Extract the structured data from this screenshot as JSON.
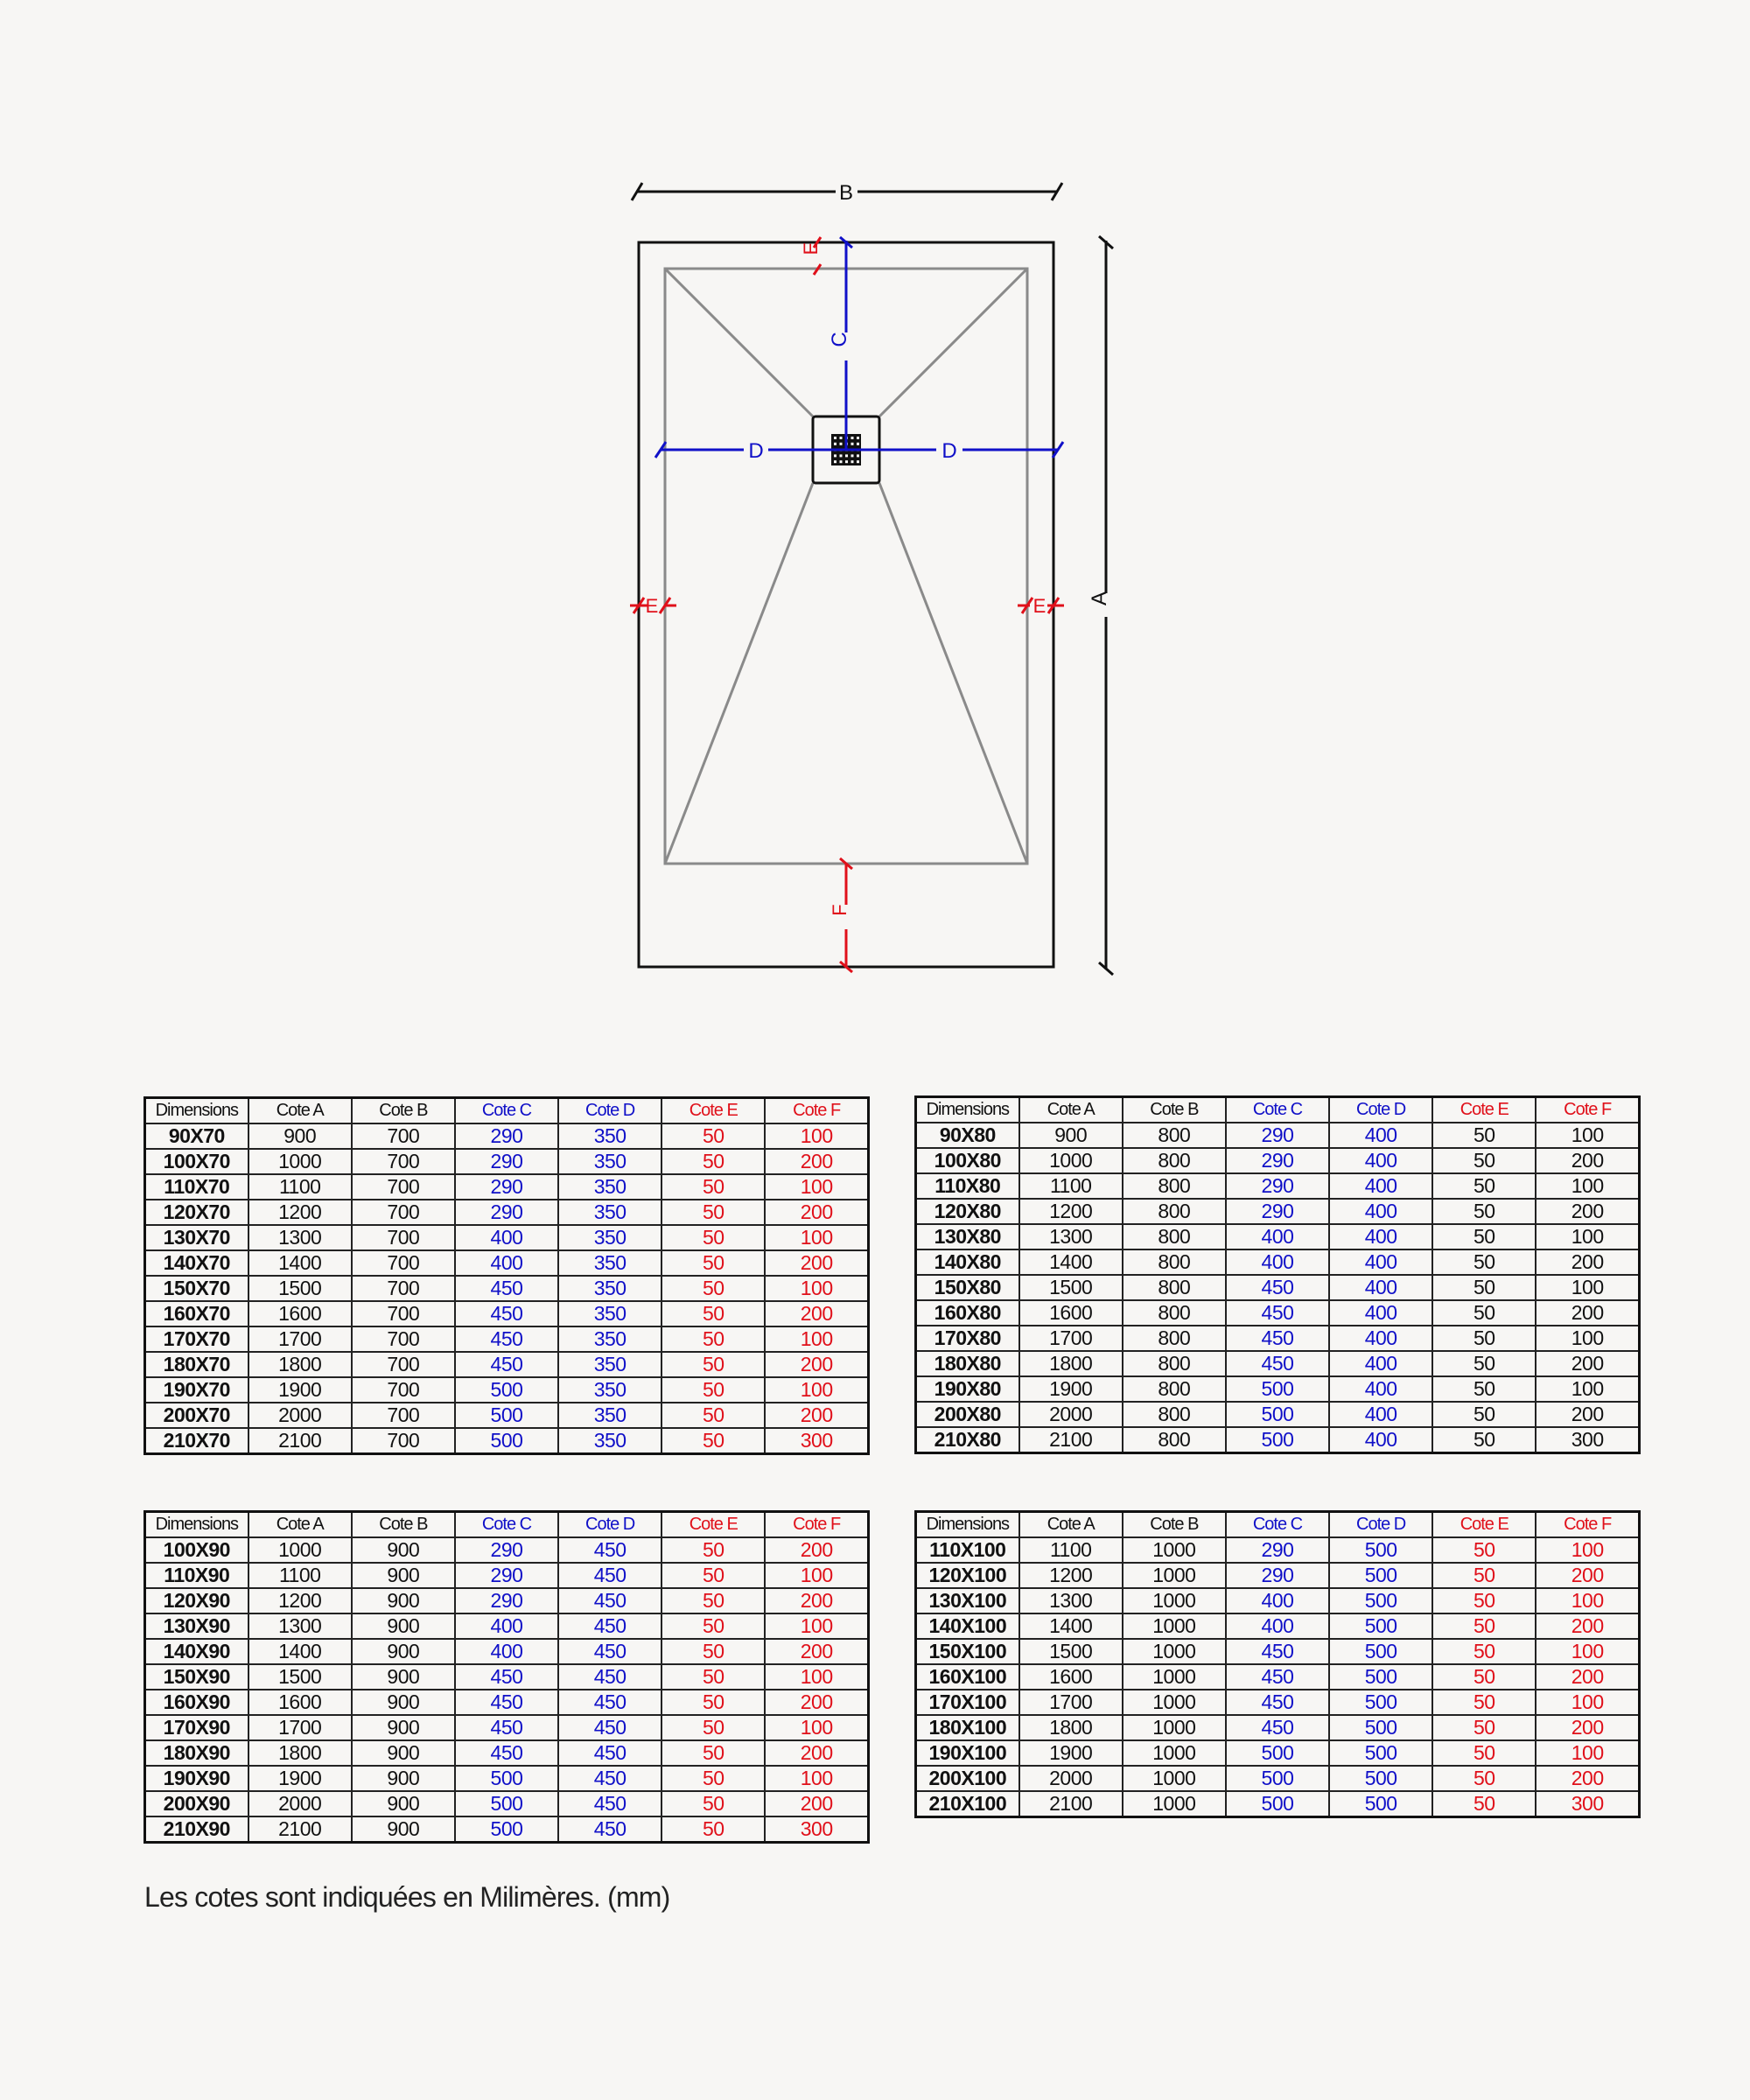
{
  "colors": {
    "black": "#111111",
    "blue": "#1010c8",
    "red": "#e0101a",
    "gray": "#8a8a8a"
  },
  "drawing": {
    "labels": {
      "a": "A",
      "b": "B",
      "c": "C",
      "d": "D",
      "e": "E",
      "f": "F"
    }
  },
  "tables": [
    {
      "headers": [
        "Dimensions",
        "Cote A",
        "Cote B",
        "Cote C",
        "Cote D",
        "Cote E",
        "Cote F"
      ],
      "rows": [
        [
          "90X70",
          "900",
          "700",
          "290",
          "350",
          "50",
          "100"
        ],
        [
          "100X70",
          "1000",
          "700",
          "290",
          "350",
          "50",
          "200"
        ],
        [
          "110X70",
          "1100",
          "700",
          "290",
          "350",
          "50",
          "100"
        ],
        [
          "120X70",
          "1200",
          "700",
          "290",
          "350",
          "50",
          "200"
        ],
        [
          "130X70",
          "1300",
          "700",
          "400",
          "350",
          "50",
          "100"
        ],
        [
          "140X70",
          "1400",
          "700",
          "400",
          "350",
          "50",
          "200"
        ],
        [
          "150X70",
          "1500",
          "700",
          "450",
          "350",
          "50",
          "100"
        ],
        [
          "160X70",
          "1600",
          "700",
          "450",
          "350",
          "50",
          "200"
        ],
        [
          "170X70",
          "1700",
          "700",
          "450",
          "350",
          "50",
          "100"
        ],
        [
          "180X70",
          "1800",
          "700",
          "450",
          "350",
          "50",
          "200"
        ],
        [
          "190X70",
          "1900",
          "700",
          "500",
          "350",
          "50",
          "100"
        ],
        [
          "200X70",
          "2000",
          "700",
          "500",
          "350",
          "50",
          "200"
        ],
        [
          "210X70",
          "2100",
          "700",
          "500",
          "350",
          "50",
          "300"
        ]
      ],
      "col_colors": [
        "black",
        "black",
        "black",
        "blue",
        "blue",
        "red",
        "red"
      ]
    },
    {
      "headers": [
        "Dimensions",
        "Cote A",
        "Cote B",
        "Cote C",
        "Cote D",
        "Cote E",
        "Cote F"
      ],
      "rows": [
        [
          "90X80",
          "900",
          "800",
          "290",
          "400",
          "50",
          "100"
        ],
        [
          "100X80",
          "1000",
          "800",
          "290",
          "400",
          "50",
          "200"
        ],
        [
          "110X80",
          "1100",
          "800",
          "290",
          "400",
          "50",
          "100"
        ],
        [
          "120X80",
          "1200",
          "800",
          "290",
          "400",
          "50",
          "200"
        ],
        [
          "130X80",
          "1300",
          "800",
          "400",
          "400",
          "50",
          "100"
        ],
        [
          "140X80",
          "1400",
          "800",
          "400",
          "400",
          "50",
          "200"
        ],
        [
          "150X80",
          "1500",
          "800",
          "450",
          "400",
          "50",
          "100"
        ],
        [
          "160X80",
          "1600",
          "800",
          "450",
          "400",
          "50",
          "200"
        ],
        [
          "170X80",
          "1700",
          "800",
          "450",
          "400",
          "50",
          "100"
        ],
        [
          "180X80",
          "1800",
          "800",
          "450",
          "400",
          "50",
          "200"
        ],
        [
          "190X80",
          "1900",
          "800",
          "500",
          "400",
          "50",
          "100"
        ],
        [
          "200X80",
          "2000",
          "800",
          "500",
          "400",
          "50",
          "200"
        ],
        [
          "210X80",
          "2100",
          "800",
          "500",
          "400",
          "50",
          "300"
        ]
      ],
      "col_colors": [
        "black",
        "black",
        "black",
        "blue",
        "blue",
        "black",
        "black"
      ]
    },
    {
      "headers": [
        "Dimensions",
        "Cote A",
        "Cote B",
        "Cote C",
        "Cote D",
        "Cote E",
        "Cote F"
      ],
      "rows": [
        [
          "100X90",
          "1000",
          "900",
          "290",
          "450",
          "50",
          "200"
        ],
        [
          "110X90",
          "1100",
          "900",
          "290",
          "450",
          "50",
          "100"
        ],
        [
          "120X90",
          "1200",
          "900",
          "290",
          "450",
          "50",
          "200"
        ],
        [
          "130X90",
          "1300",
          "900",
          "400",
          "450",
          "50",
          "100"
        ],
        [
          "140X90",
          "1400",
          "900",
          "400",
          "450",
          "50",
          "200"
        ],
        [
          "150X90",
          "1500",
          "900",
          "450",
          "450",
          "50",
          "100"
        ],
        [
          "160X90",
          "1600",
          "900",
          "450",
          "450",
          "50",
          "200"
        ],
        [
          "170X90",
          "1700",
          "900",
          "450",
          "450",
          "50",
          "100"
        ],
        [
          "180X90",
          "1800",
          "900",
          "450",
          "450",
          "50",
          "200"
        ],
        [
          "190X90",
          "1900",
          "900",
          "500",
          "450",
          "50",
          "100"
        ],
        [
          "200X90",
          "2000",
          "900",
          "500",
          "450",
          "50",
          "200"
        ],
        [
          "210X90",
          "2100",
          "900",
          "500",
          "450",
          "50",
          "300"
        ]
      ],
      "col_colors": [
        "black",
        "black",
        "black",
        "blue",
        "blue",
        "red",
        "red"
      ]
    },
    {
      "headers": [
        "Dimensions",
        "Cote A",
        "Cote B",
        "Cote C",
        "Cote D",
        "Cote E",
        "Cote F"
      ],
      "rows": [
        [
          "110X100",
          "1100",
          "1000",
          "290",
          "500",
          "50",
          "100"
        ],
        [
          "120X100",
          "1200",
          "1000",
          "290",
          "500",
          "50",
          "200"
        ],
        [
          "130X100",
          "1300",
          "1000",
          "400",
          "500",
          "50",
          "100"
        ],
        [
          "140X100",
          "1400",
          "1000",
          "400",
          "500",
          "50",
          "200"
        ],
        [
          "150X100",
          "1500",
          "1000",
          "450",
          "500",
          "50",
          "100"
        ],
        [
          "160X100",
          "1600",
          "1000",
          "450",
          "500",
          "50",
          "200"
        ],
        [
          "170X100",
          "1700",
          "1000",
          "450",
          "500",
          "50",
          "100"
        ],
        [
          "180X100",
          "1800",
          "1000",
          "450",
          "500",
          "50",
          "200"
        ],
        [
          "190X100",
          "1900",
          "1000",
          "500",
          "500",
          "50",
          "100"
        ],
        [
          "200X100",
          "2000",
          "1000",
          "500",
          "500",
          "50",
          "200"
        ],
        [
          "210X100",
          "2100",
          "1000",
          "500",
          "500",
          "50",
          "300"
        ]
      ],
      "col_colors": [
        "black",
        "black",
        "black",
        "blue",
        "blue",
        "red",
        "red"
      ]
    }
  ],
  "note": "Les cotes sont indiquées en Milimères. (mm)"
}
